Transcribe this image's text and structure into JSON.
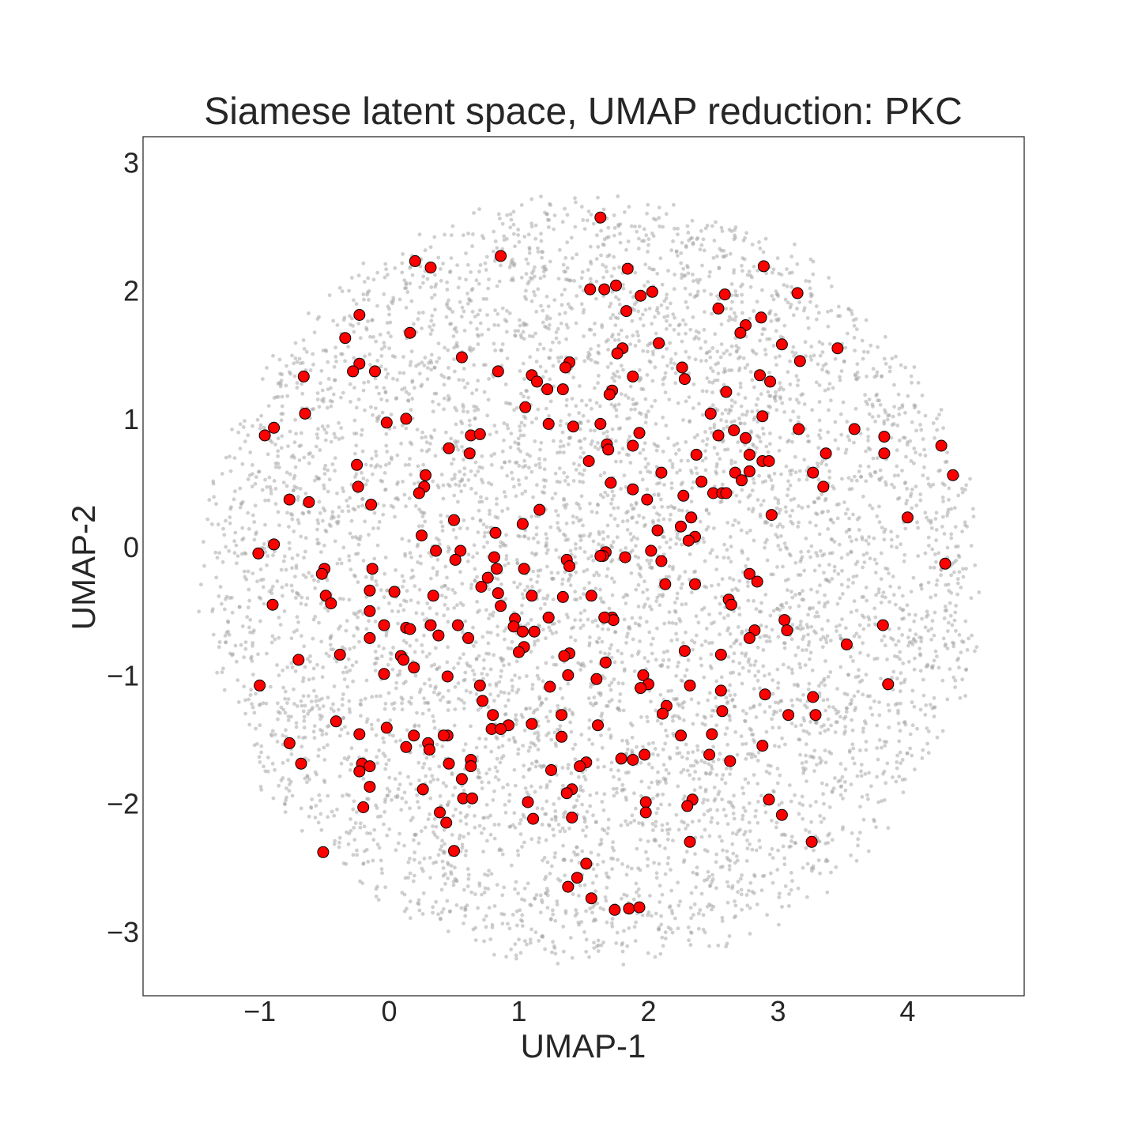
{
  "chart_data": {
    "type": "scatter",
    "title": "Siamese latent space, UMAP reduction: PKC",
    "xlabel": "UMAP-1",
    "ylabel": "UMAP-2",
    "xlim": [
      -1.9,
      4.9
    ],
    "ylim": [
      -3.5,
      3.2
    ],
    "xticks": [
      -1,
      0,
      1,
      2,
      3,
      4
    ],
    "xtick_labels": [
      "−1",
      "0",
      "1",
      "2",
      "3",
      "4"
    ],
    "yticks": [
      -3,
      -2,
      -1,
      0,
      1,
      2,
      3
    ],
    "ytick_labels": [
      "−3",
      "−2",
      "−1",
      "0",
      "1",
      "2",
      "3"
    ],
    "grid": false,
    "legend": "none",
    "background_series": {
      "description_of_distribution": "dense gray points filling a roughly circular region",
      "center": [
        1.55,
        -0.25
      ],
      "radius": 2.95,
      "approx_count": 6000,
      "color": "#a0a0a0"
    },
    "series": [
      {
        "color": "#ff0000",
        "edge_color": "#000000",
        "points": [
          [
            1.63,
            2.57
          ],
          [
            0.86,
            2.27
          ],
          [
            0.2,
            2.23
          ],
          [
            0.32,
            2.18
          ],
          [
            1.84,
            2.17
          ],
          [
            2.89,
            2.19
          ],
          [
            1.55,
            2.01
          ],
          [
            1.66,
            2.01
          ],
          [
            1.75,
            2.04
          ],
          [
            1.94,
            1.96
          ],
          [
            2.03,
            1.99
          ],
          [
            2.59,
            1.97
          ],
          [
            3.15,
            1.98
          ],
          [
            1.83,
            1.84
          ],
          [
            2.54,
            1.86
          ],
          [
            -0.23,
            1.81
          ],
          [
            2.87,
            1.79
          ],
          [
            0.16,
            1.67
          ],
          [
            -0.34,
            1.63
          ],
          [
            2.75,
            1.73
          ],
          [
            2.71,
            1.67
          ],
          [
            2.08,
            1.59
          ],
          [
            3.03,
            1.58
          ],
          [
            3.46,
            1.55
          ],
          [
            1.8,
            1.55
          ],
          [
            1.76,
            1.51
          ],
          [
            0.56,
            1.48
          ],
          [
            1.39,
            1.44
          ],
          [
            1.36,
            1.4
          ],
          [
            3.17,
            1.45
          ],
          [
            -0.23,
            1.43
          ],
          [
            -0.28,
            1.37
          ],
          [
            -0.11,
            1.37
          ],
          [
            0.84,
            1.37
          ],
          [
            2.26,
            1.4
          ],
          [
            1.1,
            1.34
          ],
          [
            1.88,
            1.33
          ],
          [
            2.86,
            1.34
          ],
          [
            2.94,
            1.29
          ],
          [
            2.28,
            1.31
          ],
          [
            -0.66,
            1.33
          ],
          [
            1.14,
            1.29
          ],
          [
            1.22,
            1.23
          ],
          [
            1.34,
            1.23
          ],
          [
            1.72,
            1.22
          ],
          [
            1.7,
            1.19
          ],
          [
            2.6,
            1.21
          ],
          [
            1.05,
            1.09
          ],
          [
            -0.65,
            1.04
          ],
          [
            2.48,
            1.04
          ],
          [
            2.88,
            1.02
          ],
          [
            0.13,
            1.0
          ],
          [
            -0.02,
            0.97
          ],
          [
            1.23,
            0.96
          ],
          [
            1.63,
            0.96
          ],
          [
            1.42,
            0.94
          ],
          [
            3.16,
            0.92
          ],
          [
            3.59,
            0.92
          ],
          [
            -0.89,
            0.93
          ],
          [
            -0.96,
            0.87
          ],
          [
            0.63,
            0.87
          ],
          [
            0.7,
            0.88
          ],
          [
            1.93,
            0.89
          ],
          [
            2.66,
            0.91
          ],
          [
            2.54,
            0.87
          ],
          [
            2.75,
            0.85
          ],
          [
            3.82,
            0.86
          ],
          [
            1.68,
            0.8
          ],
          [
            1.69,
            0.76
          ],
          [
            1.88,
            0.79
          ],
          [
            0.46,
            0.77
          ],
          [
            0.62,
            0.73
          ],
          [
            2.37,
            0.72
          ],
          [
            2.78,
            0.72
          ],
          [
            3.37,
            0.73
          ],
          [
            3.82,
            0.73
          ],
          [
            4.26,
            0.79
          ],
          [
            1.54,
            0.67
          ],
          [
            2.88,
            0.67
          ],
          [
            2.93,
            0.67
          ],
          [
            -0.25,
            0.64
          ],
          [
            2.1,
            0.58
          ],
          [
            2.67,
            0.58
          ],
          [
            2.78,
            0.59
          ],
          [
            3.27,
            0.58
          ],
          [
            4.35,
            0.56
          ],
          [
            0.28,
            0.56
          ],
          [
            1.71,
            0.5
          ],
          [
            2.41,
            0.51
          ],
          [
            2.72,
            0.52
          ],
          [
            -0.24,
            0.47
          ],
          [
            0.27,
            0.47
          ],
          [
            3.35,
            0.47
          ],
          [
            0.23,
            0.42
          ],
          [
            1.88,
            0.45
          ],
          [
            2.27,
            0.4
          ],
          [
            2.5,
            0.42
          ],
          [
            2.57,
            0.42
          ],
          [
            2.6,
            0.42
          ],
          [
            -0.77,
            0.37
          ],
          [
            -0.62,
            0.35
          ],
          [
            1.99,
            0.37
          ],
          [
            -0.14,
            0.33
          ],
          [
            1.16,
            0.29
          ],
          [
            2.95,
            0.25
          ],
          [
            4.0,
            0.23
          ],
          [
            2.33,
            0.23
          ],
          [
            0.5,
            0.21
          ],
          [
            1.03,
            0.18
          ],
          [
            2.25,
            0.16
          ],
          [
            2.07,
            0.13
          ],
          [
            0.82,
            0.11
          ],
          [
            0.25,
            0.09
          ],
          [
            2.36,
            0.08
          ],
          [
            2.31,
            0.05
          ],
          [
            -0.89,
            0.02
          ],
          [
            0.36,
            -0.03
          ],
          [
            0.55,
            -0.03
          ],
          [
            2.02,
            -0.03
          ],
          [
            -1.01,
            -0.05
          ],
          [
            1.67,
            -0.04
          ],
          [
            1.65,
            -0.07
          ],
          [
            1.63,
            -0.07
          ],
          [
            1.82,
            -0.08
          ],
          [
            0.81,
            -0.08
          ],
          [
            1.37,
            -0.1
          ],
          [
            0.51,
            -0.1
          ],
          [
            2.1,
            -0.11
          ],
          [
            4.29,
            -0.13
          ],
          [
            1.39,
            -0.15
          ],
          [
            -0.13,
            -0.17
          ],
          [
            1.04,
            -0.17
          ],
          [
            0.83,
            -0.17
          ],
          [
            -0.5,
            -0.17
          ],
          [
            -0.52,
            -0.21
          ],
          [
            2.78,
            -0.21
          ],
          [
            0.76,
            -0.24
          ],
          [
            2.84,
            -0.27
          ],
          [
            2.13,
            -0.29
          ],
          [
            2.36,
            -0.29
          ],
          [
            0.71,
            -0.31
          ],
          [
            -0.15,
            -0.34
          ],
          [
            0.04,
            -0.35
          ],
          [
            0.84,
            -0.36
          ],
          [
            1.56,
            -0.38
          ],
          [
            0.34,
            -0.38
          ],
          [
            -0.49,
            -0.38
          ],
          [
            1.1,
            -0.38
          ],
          [
            1.34,
            -0.39
          ],
          [
            -0.45,
            -0.44
          ],
          [
            -0.9,
            -0.45
          ],
          [
            2.62,
            -0.41
          ],
          [
            2.64,
            -0.45
          ],
          [
            0.86,
            -0.46
          ],
          [
            -0.15,
            -0.5
          ],
          [
            1.72,
            -0.55
          ],
          [
            1.73,
            -0.57
          ],
          [
            1.66,
            -0.55
          ],
          [
            0.97,
            -0.56
          ],
          [
            1.23,
            -0.55
          ],
          [
            3.05,
            -0.57
          ],
          [
            -0.04,
            -0.61
          ],
          [
            0.32,
            -0.61
          ],
          [
            0.53,
            -0.61
          ],
          [
            0.96,
            -0.62
          ],
          [
            3.81,
            -0.61
          ],
          [
            0.13,
            -0.63
          ],
          [
            0.16,
            -0.64
          ],
          [
            1.03,
            -0.66
          ],
          [
            1.12,
            -0.66
          ],
          [
            2.82,
            -0.65
          ],
          [
            3.07,
            -0.65
          ],
          [
            0.38,
            -0.69
          ],
          [
            -0.15,
            -0.71
          ],
          [
            0.61,
            -0.71
          ],
          [
            2.78,
            -0.71
          ],
          [
            3.53,
            -0.76
          ],
          [
            1.04,
            -0.78
          ],
          [
            1.0,
            -0.82
          ],
          [
            2.28,
            -0.81
          ],
          [
            -0.38,
            -0.84
          ],
          [
            1.39,
            -0.83
          ],
          [
            1.35,
            -0.85
          ],
          [
            0.09,
            -0.85
          ],
          [
            2.56,
            -0.84
          ],
          [
            -0.7,
            -0.88
          ],
          [
            0.11,
            -0.88
          ],
          [
            1.67,
            -0.9
          ],
          [
            0.19,
            -0.94
          ],
          [
            1.96,
            -1.0
          ],
          [
            -0.04,
            -0.99
          ],
          [
            0.45,
            -1.01
          ],
          [
            1.38,
            -1.0
          ],
          [
            1.6,
            -1.03
          ],
          [
            2.0,
            -1.07
          ],
          [
            1.94,
            -1.1
          ],
          [
            2.32,
            -1.08
          ],
          [
            -1.0,
            -1.08
          ],
          [
            0.7,
            -1.08
          ],
          [
            3.85,
            -1.07
          ],
          [
            1.24,
            -1.09
          ],
          [
            2.56,
            -1.12
          ],
          [
            2.9,
            -1.15
          ],
          [
            3.27,
            -1.17
          ],
          [
            0.72,
            -1.2
          ],
          [
            2.14,
            -1.24
          ],
          [
            2.57,
            -1.28
          ],
          [
            2.11,
            -1.3
          ],
          [
            0.8,
            -1.31
          ],
          [
            1.33,
            -1.31
          ],
          [
            3.08,
            -1.31
          ],
          [
            3.29,
            -1.31
          ],
          [
            -0.41,
            -1.36
          ],
          [
            1.1,
            -1.38
          ],
          [
            0.92,
            -1.39
          ],
          [
            1.61,
            -1.39
          ],
          [
            -0.02,
            -1.41
          ],
          [
            0.79,
            -1.42
          ],
          [
            0.86,
            -1.42
          ],
          [
            -0.23,
            -1.46
          ],
          [
            0.19,
            -1.47
          ],
          [
            0.45,
            -1.47
          ],
          [
            0.42,
            -1.47
          ],
          [
            1.33,
            -1.48
          ],
          [
            2.25,
            -1.47
          ],
          [
            2.49,
            -1.46
          ],
          [
            -0.77,
            -1.53
          ],
          [
            0.3,
            -1.53
          ],
          [
            0.13,
            -1.56
          ],
          [
            2.88,
            -1.55
          ],
          [
            0.31,
            -1.58
          ],
          [
            1.97,
            -1.62
          ],
          [
            2.47,
            -1.62
          ],
          [
            1.79,
            -1.65
          ],
          [
            1.88,
            -1.66
          ],
          [
            2.63,
            -1.67
          ],
          [
            -0.68,
            -1.69
          ],
          [
            0.63,
            -1.66
          ],
          [
            1.52,
            -1.68
          ],
          [
            0.46,
            -1.69
          ],
          [
            -0.21,
            -1.69
          ],
          [
            -0.15,
            -1.71
          ],
          [
            0.63,
            -1.71
          ],
          [
            1.47,
            -1.71
          ],
          [
            -0.23,
            -1.75
          ],
          [
            1.25,
            -1.74
          ],
          [
            0.56,
            -1.81
          ],
          [
            -0.15,
            -1.87
          ],
          [
            1.41,
            -1.89
          ],
          [
            1.37,
            -1.92
          ],
          [
            0.26,
            -1.89
          ],
          [
            0.57,
            -1.96
          ],
          [
            0.64,
            -1.96
          ],
          [
            2.34,
            -1.97
          ],
          [
            2.93,
            -1.97
          ],
          [
            1.07,
            -1.99
          ],
          [
            1.98,
            -1.99
          ],
          [
            2.3,
            -2.02
          ],
          [
            -0.2,
            -2.03
          ],
          [
            0.39,
            -2.07
          ],
          [
            1.98,
            -2.07
          ],
          [
            3.03,
            -2.09
          ],
          [
            1.41,
            -2.11
          ],
          [
            1.11,
            -2.12
          ],
          [
            0.44,
            -2.15
          ],
          [
            2.32,
            -2.3
          ],
          [
            3.26,
            -2.3
          ],
          [
            0.5,
            -2.37
          ],
          [
            -0.51,
            -2.38
          ],
          [
            1.52,
            -2.47
          ],
          [
            1.45,
            -2.58
          ],
          [
            1.38,
            -2.65
          ],
          [
            1.56,
            -2.74
          ],
          [
            1.74,
            -2.83
          ],
          [
            1.85,
            -2.82
          ],
          [
            1.93,
            -2.81
          ]
        ]
      }
    ]
  }
}
